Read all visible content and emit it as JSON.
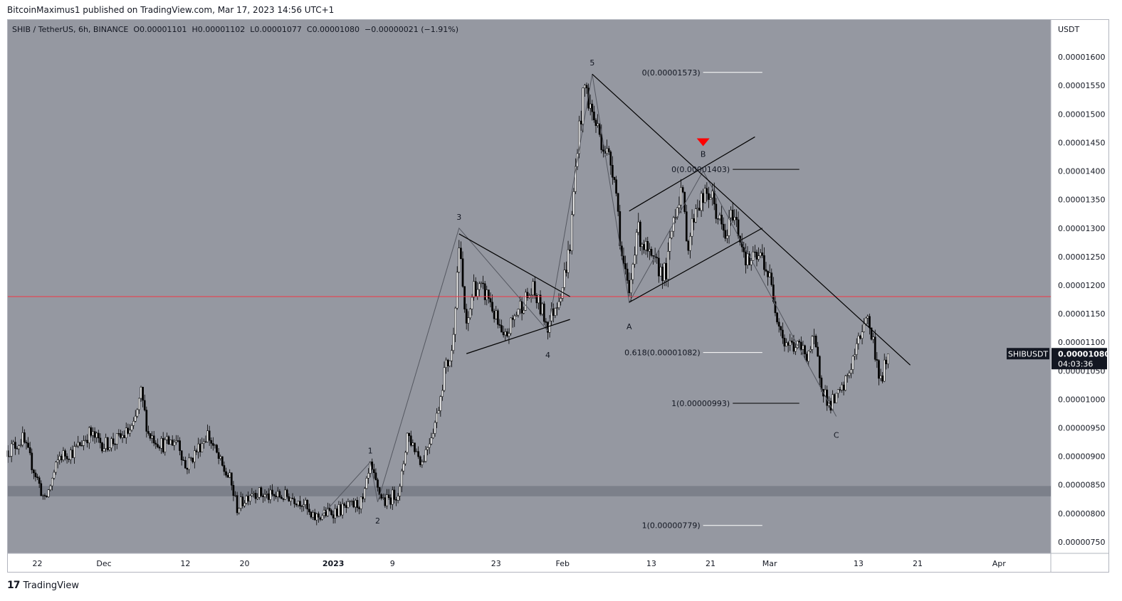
{
  "publisher_line": "BitcoinMaximus1 published on TradingView.com, Mar 17, 2023 14:56 UTC+1",
  "footer": {
    "brand": "TradingView",
    "brand_icon": "tradingview-logo-icon"
  },
  "colors": {
    "background": "#9598a1",
    "candle": "#000000",
    "line": "#000000",
    "horizontal_level": "#f23645",
    "support_zone": "#787b86",
    "marker": "#ff0000",
    "fib_white": "#ffffff"
  },
  "chart_data": {
    "type": "candlestick",
    "symbol": "SHIB / TetherUS, 6h, BINANCE",
    "ohlc": {
      "open_label": "O",
      "open": "0.00001101",
      "high_label": "H",
      "high": "0.00001102",
      "low_label": "L",
      "low": "0.00001077",
      "close_label": "C",
      "close": "0.00001080",
      "change": "−0.00000021 (−1.91%)"
    },
    "y_axis_title": "USDT",
    "y_ticks": [
      {
        "value": 1.6e-05,
        "label": "0.00001600"
      },
      {
        "value": 1.55e-05,
        "label": "0.00001550"
      },
      {
        "value": 1.5e-05,
        "label": "0.00001500"
      },
      {
        "value": 1.45e-05,
        "label": "0.00001450"
      },
      {
        "value": 1.4e-05,
        "label": "0.00001400"
      },
      {
        "value": 1.35e-05,
        "label": "0.00001350"
      },
      {
        "value": 1.3e-05,
        "label": "0.00001300"
      },
      {
        "value": 1.25e-05,
        "label": "0.00001250"
      },
      {
        "value": 1.2e-05,
        "label": "0.00001200"
      },
      {
        "value": 1.15e-05,
        "label": "0.00001150"
      },
      {
        "value": 1.1e-05,
        "label": "0.00001100"
      },
      {
        "value": 1.05e-05,
        "label": "0.00001050"
      },
      {
        "value": 1e-05,
        "label": "0.00001000"
      },
      {
        "value": 9.5e-06,
        "label": "0.00000950"
      },
      {
        "value": 9e-06,
        "label": "0.00000900"
      },
      {
        "value": 8.5e-06,
        "label": "0.00000850"
      },
      {
        "value": 8e-06,
        "label": "0.00000800"
      },
      {
        "value": 7.5e-06,
        "label": "0.00000750"
      }
    ],
    "ylim": [
      7.3e-06,
      1.665e-05
    ],
    "x_ticks": [
      {
        "date": "2022-11-22",
        "label": "22"
      },
      {
        "date": "2022-12-01",
        "label": "Dec"
      },
      {
        "date": "2022-12-12",
        "label": "12"
      },
      {
        "date": "2022-12-20",
        "label": "20"
      },
      {
        "date": "2023-01-01",
        "label": "2023",
        "bold": true
      },
      {
        "date": "2023-01-09",
        "label": "9"
      },
      {
        "date": "2023-01-23",
        "label": "23"
      },
      {
        "date": "2023-02-01",
        "label": "Feb"
      },
      {
        "date": "2023-02-13",
        "label": "13"
      },
      {
        "date": "2023-02-21",
        "label": "21"
      },
      {
        "date": "2023-03-01",
        "label": "Mar"
      },
      {
        "date": "2023-03-13",
        "label": "13"
      },
      {
        "date": "2023-03-21",
        "label": "21"
      },
      {
        "date": "2023-04-01",
        "label": "Apr"
      }
    ],
    "xlim": [
      "2022-11-18",
      "2023-04-08"
    ],
    "price_path": [
      [
        "2022-11-18",
        9.1e-06
      ],
      [
        "2022-11-20",
        9.3e-06
      ],
      [
        "2022-11-22",
        8.6e-06
      ],
      [
        "2022-11-23",
        8.2e-06
      ],
      [
        "2022-11-25",
        9e-06
      ],
      [
        "2022-11-27",
        9.1e-06
      ],
      [
        "2022-11-29",
        9.4e-06
      ],
      [
        "2022-12-01",
        9.2e-06
      ],
      [
        "2022-12-03",
        9.3e-06
      ],
      [
        "2022-12-05",
        9.5e-06
      ],
      [
        "2022-12-06",
        1.01e-05
      ],
      [
        "2022-12-07",
        9.4e-06
      ],
      [
        "2022-12-09",
        9.2e-06
      ],
      [
        "2022-12-11",
        9.3e-06
      ],
      [
        "2022-12-12",
        8.8e-06
      ],
      [
        "2022-12-14",
        9.2e-06
      ],
      [
        "2022-12-15",
        9.4e-06
      ],
      [
        "2022-12-17",
        8.8e-06
      ],
      [
        "2022-12-18",
        8.6e-06
      ],
      [
        "2022-12-19",
        8.1e-06
      ],
      [
        "2022-12-21",
        8.4e-06
      ],
      [
        "2022-12-23",
        8.3e-06
      ],
      [
        "2022-12-26",
        8.3e-06
      ],
      [
        "2022-12-28",
        8.2e-06
      ],
      [
        "2022-12-29",
        7.9e-06
      ],
      [
        "2022-12-31",
        8e-06
      ],
      [
        "2023-01-03",
        8.1e-06
      ],
      [
        "2023-01-05",
        8.2e-06
      ],
      [
        "2023-01-06",
        8.8e-06
      ],
      [
        "2023-01-07",
        8.4e-06
      ],
      [
        "2023-01-08",
        8.2e-06
      ],
      [
        "2023-01-10",
        8.4e-06
      ],
      [
        "2023-01-11",
        9.4e-06
      ],
      [
        "2023-01-13",
        8.9e-06
      ],
      [
        "2023-01-15",
        9.7e-06
      ],
      [
        "2023-01-16",
        1.05e-05
      ],
      [
        "2023-01-17",
        1.08e-05
      ],
      [
        "2023-01-18",
        1.27e-05
      ],
      [
        "2023-01-19",
        1.12e-05
      ],
      [
        "2023-01-20",
        1.2e-05
      ],
      [
        "2023-01-22",
        1.18e-05
      ],
      [
        "2023-01-24",
        1.1e-05
      ],
      [
        "2023-01-26",
        1.16e-05
      ],
      [
        "2023-01-28",
        1.19e-05
      ],
      [
        "2023-01-30",
        1.13e-05
      ],
      [
        "2023-02-01",
        1.2e-05
      ],
      [
        "2023-02-02",
        1.27e-05
      ],
      [
        "2023-02-03",
        1.45e-05
      ],
      [
        "2023-02-04",
        1.55e-05
      ],
      [
        "2023-02-05",
        1.5e-05
      ],
      [
        "2023-02-07",
        1.43e-05
      ],
      [
        "2023-02-08",
        1.4e-05
      ],
      [
        "2023-02-09",
        1.25e-05
      ],
      [
        "2023-02-10",
        1.18e-05
      ],
      [
        "2023-02-11",
        1.3e-05
      ],
      [
        "2023-02-13",
        1.24e-05
      ],
      [
        "2023-02-15",
        1.22e-05
      ],
      [
        "2023-02-16",
        1.32e-05
      ],
      [
        "2023-02-17",
        1.37e-05
      ],
      [
        "2023-02-18",
        1.27e-05
      ],
      [
        "2023-02-19",
        1.34e-05
      ],
      [
        "2023-02-21",
        1.36e-05
      ],
      [
        "2023-02-23",
        1.28e-05
      ],
      [
        "2023-02-24",
        1.33e-05
      ],
      [
        "2023-02-26",
        1.24e-05
      ],
      [
        "2023-02-28",
        1.25e-05
      ],
      [
        "2023-03-01",
        1.21e-05
      ],
      [
        "2023-03-02",
        1.15e-05
      ],
      [
        "2023-03-03",
        1.1e-05
      ],
      [
        "2023-03-05",
        1.09e-05
      ],
      [
        "2023-03-06",
        1.08e-05
      ],
      [
        "2023-03-07",
        1.1e-05
      ],
      [
        "2023-03-08",
        1.03e-05
      ],
      [
        "2023-03-09",
        9.9e-06
      ],
      [
        "2023-03-10",
        1e-05
      ],
      [
        "2023-03-11",
        1.02e-05
      ],
      [
        "2023-03-12",
        1.06e-05
      ],
      [
        "2023-03-13",
        1.1e-05
      ],
      [
        "2023-03-14",
        1.15e-05
      ],
      [
        "2023-03-15",
        1.1e-05
      ],
      [
        "2023-03-16",
        1.03e-05
      ],
      [
        "2023-03-17",
        1.08e-05
      ]
    ],
    "horizontal_level": 1.18e-05,
    "support_zone": [
      8.3e-06,
      8.48e-06
    ],
    "trendlines": [
      {
        "from": [
          "2023-02-05",
          1.57e-05
        ],
        "to": [
          "2023-03-20",
          1.06e-05
        ],
        "name": "descending-resistance"
      },
      {
        "from": [
          "2023-01-18",
          1.29e-05
        ],
        "to": [
          "2023-02-02",
          1.18e-05
        ],
        "name": "triangle-upper"
      },
      {
        "from": [
          "2023-01-19",
          1.08e-05
        ],
        "to": [
          "2023-02-02",
          1.14e-05
        ],
        "name": "triangle-lower"
      },
      {
        "from": [
          "2023-02-10",
          1.17e-05
        ],
        "to": [
          "2023-02-28",
          1.3e-05
        ],
        "name": "channel-lower"
      },
      {
        "from": [
          "2023-02-10",
          1.33e-05
        ],
        "to": [
          "2023-02-27",
          1.46e-05
        ],
        "name": "channel-upper"
      }
    ],
    "wave_path": [
      [
        "2022-12-30",
        7.9e-06
      ],
      [
        "2023-01-06",
        8.9e-06
      ],
      [
        "2023-01-07",
        8.2e-06
      ],
      [
        "2023-01-18",
        1.3e-05
      ],
      [
        "2023-01-30",
        1.12e-05
      ],
      [
        "2023-02-05",
        1.57e-05
      ],
      [
        "2023-02-10",
        1.17e-05
      ],
      [
        "2023-02-20",
        1.4e-05
      ],
      [
        "2023-03-10",
        9.7e-06
      ]
    ],
    "wave_labels": [
      {
        "text": "1",
        "date": "2023-01-06",
        "price": 9e-06,
        "pos": "above"
      },
      {
        "text": "2",
        "date": "2023-01-07",
        "price": 8e-06,
        "pos": "below"
      },
      {
        "text": "3",
        "date": "2023-01-18",
        "price": 1.31e-05,
        "pos": "above"
      },
      {
        "text": "4",
        "date": "2023-01-30",
        "price": 1.09e-05,
        "pos": "below"
      },
      {
        "text": "5",
        "date": "2023-02-05",
        "price": 1.58e-05,
        "pos": "above"
      },
      {
        "text": "A",
        "date": "2023-02-10",
        "price": 1.14e-05,
        "pos": "below"
      },
      {
        "text": "B",
        "date": "2023-02-20",
        "price": 1.42e-05,
        "pos": "above"
      },
      {
        "text": "C",
        "date": "2023-03-10",
        "price": 9.5e-06,
        "pos": "below"
      }
    ],
    "fib_levels": [
      {
        "label": "0(0.00001573)",
        "value": 1.573e-05,
        "line_from": "2023-02-20",
        "line_to": "2023-02-28",
        "color": "#ffffff"
      },
      {
        "label": "0.618(0.00001082)",
        "value": 1.082e-05,
        "line_from": "2023-02-20",
        "line_to": "2023-02-28",
        "color": "#ffffff"
      },
      {
        "label": "1(0.00000779)",
        "value": 7.79e-06,
        "line_from": "2023-02-20",
        "line_to": "2023-02-28",
        "color": "#ffffff"
      },
      {
        "label": "0(0.00001403)",
        "value": 1.403e-05,
        "line_from": "2023-02-24",
        "line_to": "2023-03-05",
        "color": "#000000"
      },
      {
        "label": "1(0.00000993)",
        "value": 9.93e-06,
        "line_from": "2023-02-24",
        "line_to": "2023-03-05",
        "color": "#000000"
      }
    ],
    "marker": {
      "shape": "down-triangle",
      "date": "2023-02-20",
      "price": 1.45e-05
    },
    "price_tag": {
      "symbol": "SHIBUSDT",
      "price": "0.00001080",
      "countdown": "04:03:36",
      "value": 1.08e-05
    }
  }
}
